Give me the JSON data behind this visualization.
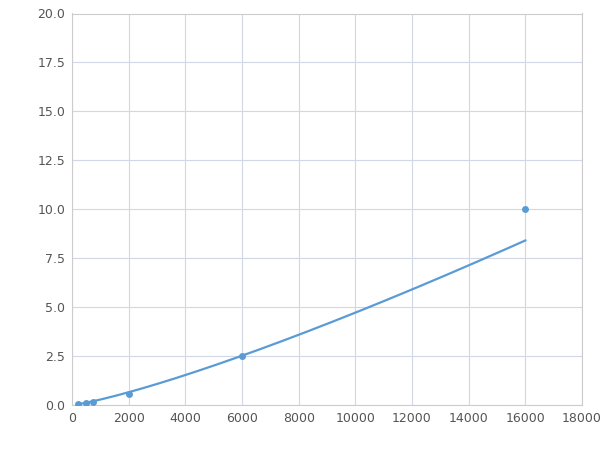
{
  "x": [
    200,
    500,
    750,
    2000,
    6000,
    16000
  ],
  "y": [
    0.05,
    0.12,
    0.15,
    0.55,
    2.5,
    10.0
  ],
  "line_color": "#5b9bd5",
  "marker_color": "#5b9bd5",
  "marker_size": 5,
  "xlim": [
    0,
    18000
  ],
  "ylim": [
    0,
    20.0
  ],
  "xticks": [
    0,
    2000,
    4000,
    6000,
    8000,
    10000,
    12000,
    14000,
    16000,
    18000
  ],
  "yticks": [
    0.0,
    2.5,
    5.0,
    7.5,
    10.0,
    12.5,
    15.0,
    17.5,
    20.0
  ],
  "grid_color": "#d0d8e8",
  "background_color": "#ffffff",
  "figure_background": "#ffffff",
  "linewidth": 1.6,
  "figsize": [
    6.0,
    4.5
  ],
  "dpi": 100
}
